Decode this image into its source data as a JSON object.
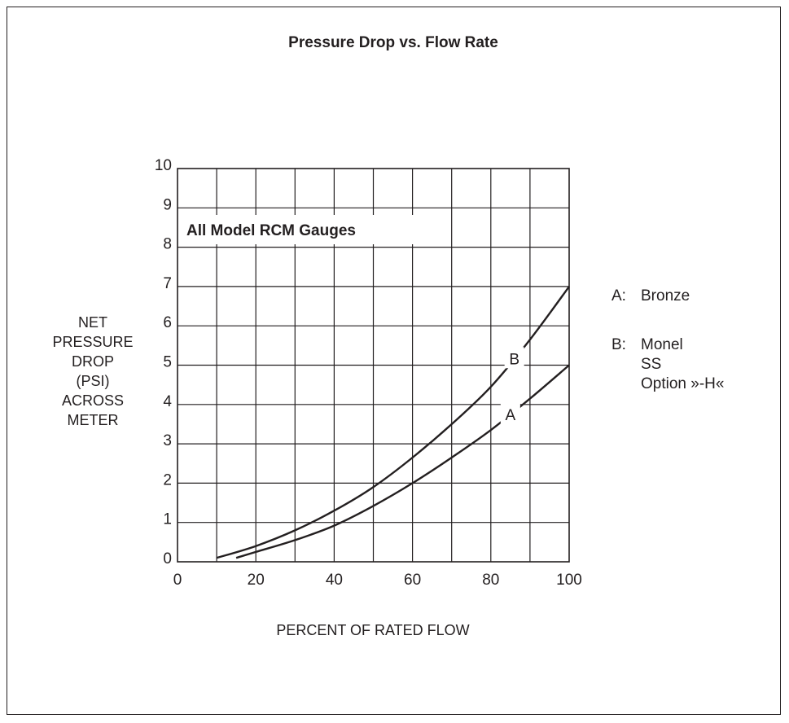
{
  "chart_data": {
    "type": "line",
    "title": "Pressure Drop vs. Flow Rate",
    "annotation": "All Model RCM Gauges",
    "xlabel": "PERCENT OF RATED FLOW",
    "ylabel_lines": [
      "NET",
      "PRESSURE",
      "DROP",
      "(PSI)",
      "ACROSS",
      "METER"
    ],
    "xlim": [
      0,
      100
    ],
    "ylim": [
      0,
      10
    ],
    "x_ticks": [
      "0",
      "20",
      "40",
      "60",
      "80",
      "100"
    ],
    "y_ticks": [
      "0",
      "1",
      "2",
      "3",
      "4",
      "5",
      "6",
      "7",
      "8",
      "9",
      "10"
    ],
    "grid": true,
    "series": [
      {
        "name": "A",
        "points": [
          [
            15,
            0.1
          ],
          [
            20,
            0.25
          ],
          [
            30,
            0.55
          ],
          [
            40,
            0.92
          ],
          [
            50,
            1.42
          ],
          [
            60,
            2.0
          ],
          [
            70,
            2.65
          ],
          [
            80,
            3.35
          ],
          [
            90,
            4.15
          ],
          [
            100,
            5.0
          ]
        ]
      },
      {
        "name": "B",
        "points": [
          [
            10,
            0.1
          ],
          [
            20,
            0.4
          ],
          [
            30,
            0.8
          ],
          [
            40,
            1.3
          ],
          [
            50,
            1.9
          ],
          [
            60,
            2.65
          ],
          [
            70,
            3.5
          ],
          [
            80,
            4.45
          ],
          [
            90,
            5.65
          ],
          [
            100,
            7.0
          ]
        ]
      }
    ],
    "legend": {
      "placement": "right",
      "entries": [
        {
          "key": "A:",
          "lines": [
            "Bronze"
          ]
        },
        {
          "key": "B:",
          "lines": [
            "Monel",
            "SS",
            "Option »-H«"
          ]
        }
      ]
    }
  }
}
